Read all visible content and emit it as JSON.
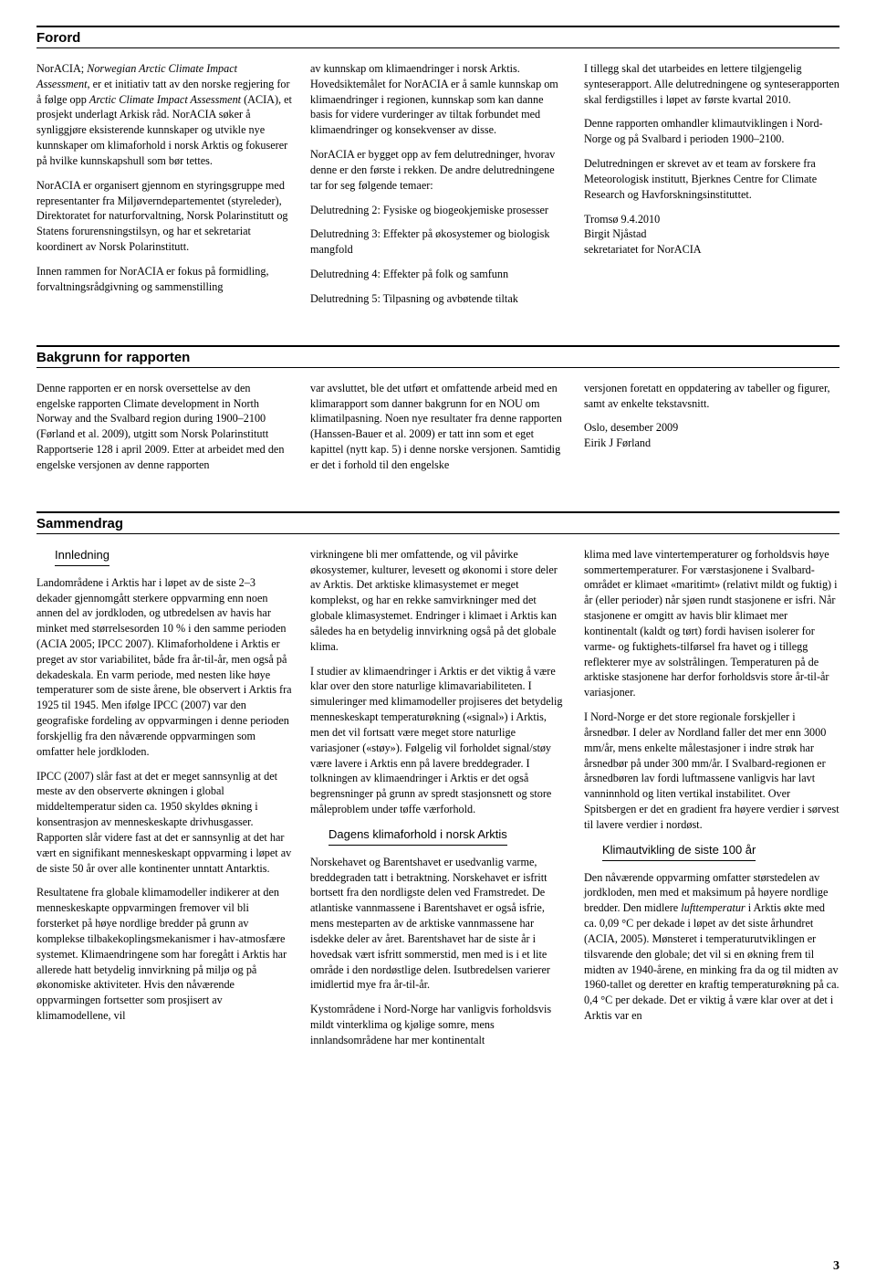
{
  "page_number": "3",
  "forord": {
    "title": "Forord",
    "col1": {
      "p1a": "NorACIA; ",
      "p1b": "Norwegian Arctic Climate Impact Assessment",
      "p1c": ", er et initiativ tatt av den norske regjering for å følge opp ",
      "p1d": "Arctic Climate Impact Assessment",
      "p1e": " (ACIA), et prosjekt underlagt Arkisk råd. NorACIA søker å synliggjøre eksisterende kunnskaper og utvikle nye kunnskaper om klimaforhold i norsk Arktis og fokuserer på hvilke kunnskapshull som bør tettes.",
      "p2": "NorACIA er organisert gjennom en styringsgruppe med representanter fra Miljøverndepartementet (styreleder), Direktoratet for naturforvaltning, Norsk Polarinstitutt og Statens forurensningstilsyn, og har et sekretariat koordinert av Norsk Polarinstitutt.",
      "p3": "Innen rammen for NorACIA er fokus på formidling, forvaltningsrådgivning og sammenstilling"
    },
    "col2": {
      "p1": "av kunnskap om klimaendringer i norsk Arktis. Hovedsiktemålet for NorACIA er å samle kunnskap om klimaendringer i regionen, kunnskap som kan danne basis for videre vurderinger av tiltak forbundet med klimaendringer og konsekvenser av disse.",
      "p2": "NorACIA er bygget opp av fem delutredninger, hvorav denne er den første i rekken. De andre delutredningene tar for seg følgende temaer:",
      "p3": "Delutredning 2: Fysiske og biogeokjemiske prosesser",
      "p4": "Delutredning 3: Effekter på økosystemer og biologisk mangfold",
      "p5": "Delutredning 4: Effekter på folk og samfunn",
      "p6": "Delutredning 5: Tilpasning og avbøtende tiltak"
    },
    "col3": {
      "p1": "I tillegg skal det utarbeides en lettere tilgjengelig synteserapport. Alle delutredningene og synteserapporten skal ferdigstilles i løpet av første kvartal 2010.",
      "p2": "Denne rapporten omhandler klimautviklingen i Nord-Norge og på Svalbard i perioden 1900–2100.",
      "p3": "Delutredningen er skrevet av et team av forskere fra Meteorologisk institutt, Bjerknes Centre for Climate Research og Havforskningsinstituttet.",
      "sig1": "Tromsø 9.4.2010",
      "sig2": "Birgit Njåstad",
      "sig3": "sekretariatet for NorACIA"
    }
  },
  "bakgrunn": {
    "title": "Bakgrunn for rapporten",
    "col1": {
      "p1": "Denne rapporten er en norsk oversettelse av den engelske rapporten Climate development in North Norway and the Svalbard region during 1900–2100 (Førland et al. 2009), utgitt som Norsk Polarinstitutt Rapportserie 128 i april 2009. Etter at arbeidet med den engelske versjonen av denne rapporten"
    },
    "col2": {
      "p1": "var avsluttet, ble det utført et omfattende arbeid med en klimarapport som danner bakgrunn for en NOU om klimatilpasning. Noen nye resultater fra denne rapporten (Hanssen-Bauer et al. 2009) er tatt inn som et eget kapittel (nytt kap. 5) i denne norske versjonen. Samtidig er det i forhold til den engelske"
    },
    "col3": {
      "p1": "versjonen foretatt en oppdatering av tabeller og figurer, samt av enkelte tekstavsnitt.",
      "sig1": "Oslo, desember 2009",
      "sig2": "Eirik J Førland"
    }
  },
  "sammendrag": {
    "title": "Sammendrag",
    "sub1": "Innledning",
    "sub2": "Dagens klimaforhold i norsk Arktis",
    "sub3": "Klimautvikling de siste 100 år",
    "col1": {
      "p1": "Landområdene i Arktis har i løpet av de siste 2–3 dekader gjennomgått sterkere oppvarming enn noen annen del av jordkloden, og utbredelsen av havis har minket med størrelsesorden 10 % i den samme perioden (ACIA 2005; IPCC 2007). Klimaforholdene i Arktis er preget av stor variabilitet, både fra år-til-år, men også på dekadeskala. En varm periode, med nesten like høye temperaturer som de siste årene, ble observert i Arktis fra 1925 til 1945. Men ifølge IPCC (2007) var den geografiske fordeling av oppvarmingen i denne perioden forskjellig fra den nåværende oppvarmingen som omfatter hele jordkloden.",
      "p2": "IPCC (2007) slår fast at det er meget sannsynlig at det meste av den observerte økningen i global middeltemperatur siden ca. 1950 skyldes økning i konsentrasjon av menneskeskapte drivhusgasser. Rapporten slår videre fast at det er sannsynlig at det har vært en signifikant menneskeskapt oppvarming i løpet av de siste 50 år over alle kontinenter unntatt Antarktis.",
      "p3": "Resultatene fra globale klimamodeller indikerer at den menneskeskapte oppvarmingen fremover vil bli forsterket på høye nordlige bredder på grunn av komplekse tilbakekoplingsmekanismer i hav-atmosfære systemet. Klimaendringene som har foregått i Arktis har allerede hatt betydelig innvirkning på miljø og på økonomiske aktiviteter. Hvis den nåværende oppvarmingen fortsetter som prosjisert av klimamodellene, vil"
    },
    "col2": {
      "p1": "virkningene bli mer omfattende, og vil påvirke økosystemer, kulturer, levesett og økonomi i store deler av Arktis. Det arktiske klimasystemet er meget komplekst, og har en rekke samvirkninger med det globale klimasystemet. Endringer i klimaet i Arktis kan således ha en betydelig innvirkning også på det globale klima.",
      "p2": "I studier av klimaendringer i Arktis er det viktig å være klar over den store naturlige klimavariabiliteten. I simuleringer med klimamodeller projiseres det betydelig menneskeskapt temperaturøkning («signal») i Arktis, men det vil fortsatt være meget store naturlige variasjoner («støy»). Følgelig vil forholdet signal/støy være lavere i Arktis enn på lavere breddegrader. I tolkningen av klimaendringer i Arktis er det også begrensninger på grunn av spredt stasjonsnett og store måleproblem under tøffe værforhold.",
      "p3": "Norskehavet og Barentshavet er usedvanlig varme, breddegraden tatt i betraktning. Norskehavet er isfritt bortsett fra den nordligste delen ved Framstredet. De atlantiske vannmassene i Barentshavet er også isfrie, mens mesteparten av de arktiske vannmassene har isdekke deler av året. Barentshavet har de siste år i hovedsak vært isfritt sommerstid, men med is i et lite område i den nordøstlige delen. Isutbredelsen varierer imidlertid mye fra år-til-år.",
      "p4": "Kystområdene i Nord-Norge har vanligvis forholdsvis mildt vinterklima og kjølige somre, mens innlandsområdene har mer kontinentalt"
    },
    "col3": {
      "p1": "klima med lave vintertemperaturer og forholdsvis høye sommertemperaturer. For værstasjonene i Svalbard-området er klimaet «maritimt» (relativt mildt og fuktig) i år (eller perioder) når sjøen rundt stasjonene er isfri. Når stasjonene er omgitt av havis blir klimaet mer kontinentalt (kaldt og tørt) fordi havisen isolerer for varme- og fuktighets-tilførsel fra havet og i tillegg reflekterer mye av solstrålingen. Temperaturen på de arktiske stasjonene har derfor forholdsvis store år-til-år variasjoner.",
      "p2": "I Nord-Norge er det store regionale forskjeller i årsnedbør. I deler av Nordland faller det mer enn 3000 mm/år, mens enkelte målestasjoner i indre strøk har årsnedbør på under 300 mm/år. I Svalbard-regionen er årsnedbøren lav fordi luftmassene vanligvis har lavt vanninnhold og liten vertikal instabilitet. Over Spitsbergen er det en gradient fra høyere verdier i sørvest til lavere verdier i nordøst.",
      "p3a": "Den nåværende oppvarming omfatter størstedelen av jordkloden, men med et maksimum på høyere nordlige bredder. Den midlere ",
      "p3b": "lufttemperatur",
      "p3c": " i Arktis økte med ca. 0,09 °C per dekade i løpet av det siste århundret (ACIA, 2005). Mønsteret i temperaturutviklingen er tilsvarende den globale; det vil si en økning frem til midten av 1940-årene, en minking fra da og til midten av 1960-tallet og deretter en kraftig temperaturøkning på ca. 0,4 °C per dekade. Det er viktig å være klar over at det i Arktis var en"
    }
  }
}
